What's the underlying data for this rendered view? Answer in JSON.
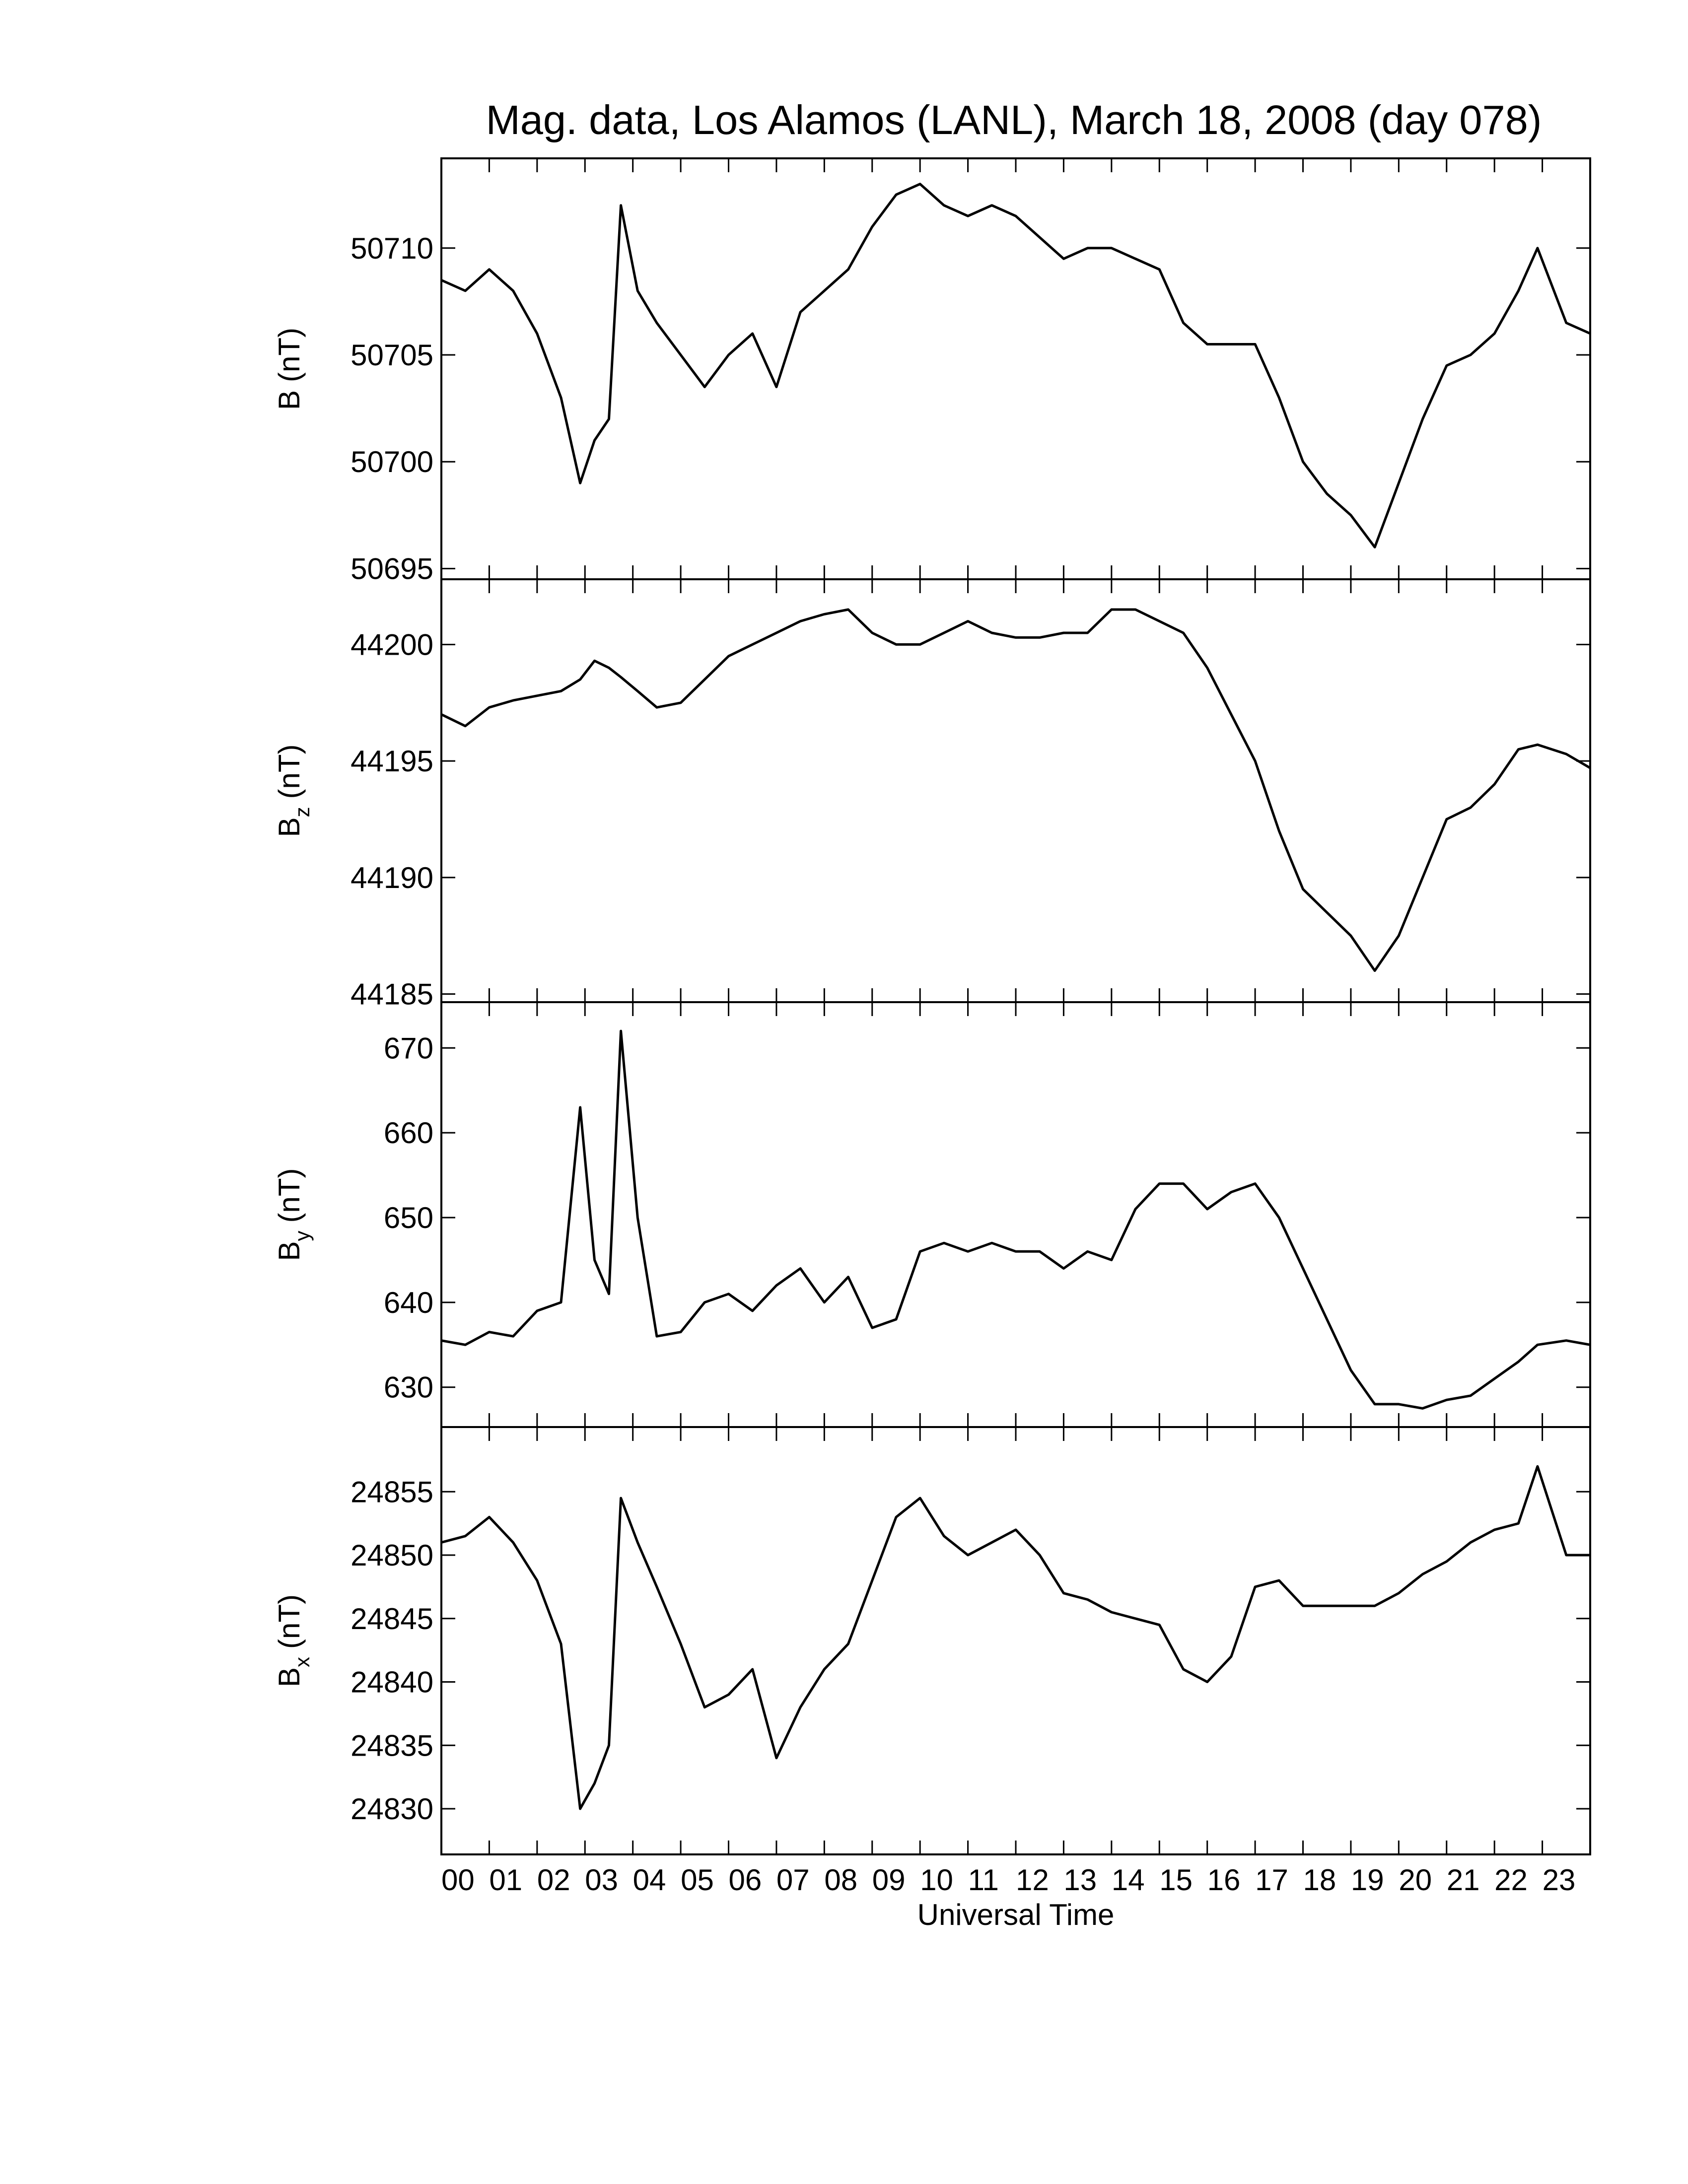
{
  "chart_data": [
    {
      "type": "line",
      "title": "Mag. data, Los Alamos (LANL), March 18, 2008 (day 078)",
      "ylabel": [
        "B",
        "(nT)"
      ],
      "color": "#000000",
      "x": [
        0,
        0.5,
        1,
        1.5,
        2,
        2.5,
        2.9,
        3.2,
        3.5,
        3.75,
        4.1,
        4.5,
        5,
        5.5,
        6,
        6.5,
        7,
        7.5,
        8,
        8.5,
        9,
        9.5,
        10,
        10.5,
        11,
        11.5,
        12,
        12.5,
        13,
        13.5,
        14,
        14.5,
        15,
        15.5,
        16,
        16.5,
        17,
        17.5,
        18,
        18.5,
        19,
        19.5,
        20,
        20.5,
        21,
        21.5,
        22,
        22.5,
        22.9,
        23.5,
        24
      ],
      "values": [
        50708.5,
        50708,
        50709,
        50708,
        50706,
        50703,
        50699,
        50701,
        50702,
        50712,
        50708,
        50706.5,
        50705,
        50703.5,
        50705,
        50706,
        50703.5,
        50707,
        50708,
        50709,
        50711,
        50712.5,
        50713,
        50712,
        50711.5,
        50712,
        50711.5,
        50710.5,
        50709.5,
        50710,
        50710,
        50709.5,
        50709,
        50706.5,
        50705.5,
        50705.5,
        50705.5,
        50703,
        50700,
        50698.5,
        50697.5,
        50696,
        50699,
        50702,
        50704.5,
        50705,
        50706,
        50708,
        50710,
        50706.5,
        50706
      ],
      "xlim": [
        0,
        24
      ],
      "ylim": [
        50694.5,
        50714.2
      ],
      "yticks": [
        50695,
        50700,
        50705,
        50710
      ]
    },
    {
      "type": "line",
      "ylabel": [
        "B",
        "z",
        "(nT)"
      ],
      "color": "#000000",
      "x": [
        0,
        0.5,
        1,
        1.5,
        2,
        2.5,
        2.9,
        3.2,
        3.5,
        3.75,
        4.1,
        4.5,
        5,
        5.5,
        6,
        6.5,
        7,
        7.5,
        8,
        8.5,
        9,
        9.5,
        10,
        10.5,
        11,
        11.5,
        12,
        12.5,
        13,
        13.5,
        14,
        14.5,
        15,
        15.5,
        16,
        16.5,
        17,
        17.5,
        18,
        18.5,
        19,
        19.5,
        20,
        20.5,
        21,
        21.5,
        22,
        22.5,
        22.9,
        23.5,
        24
      ],
      "values": [
        44197,
        44196.5,
        44197.3,
        44197.6,
        44197.8,
        44198,
        44198.5,
        44199.3,
        44199,
        44198.6,
        44198,
        44197.3,
        44197.5,
        44198.5,
        44199.5,
        44200,
        44200.5,
        44201,
        44201.3,
        44201.5,
        44200.5,
        44200,
        44200,
        44200.5,
        44201,
        44200.5,
        44200.3,
        44200.3,
        44200.5,
        44200.5,
        44201.5,
        44201.5,
        44201,
        44200.5,
        44199,
        44197,
        44195,
        44192,
        44189.5,
        44188.5,
        44187.5,
        44186,
        44187.5,
        44190,
        44192.5,
        44193,
        44194,
        44195.5,
        44195.7,
        44195.3,
        44194.7
      ],
      "xlim": [
        0,
        24
      ],
      "ylim": [
        44184.65,
        44202.8
      ],
      "yticks": [
        44185,
        44190,
        44195,
        44200
      ]
    },
    {
      "type": "line",
      "ylabel": [
        "B",
        "y",
        "(nT)"
      ],
      "color": "#000000",
      "x": [
        0,
        0.5,
        1,
        1.5,
        2,
        2.5,
        2.9,
        3.2,
        3.5,
        3.75,
        4.1,
        4.5,
        5,
        5.5,
        6,
        6.5,
        7,
        7.5,
        8,
        8.5,
        9,
        9.5,
        10,
        10.5,
        11,
        11.5,
        12,
        12.5,
        13,
        13.5,
        14,
        14.5,
        15,
        15.5,
        16,
        16.5,
        17,
        17.5,
        18,
        18.5,
        19,
        19.5,
        20,
        20.5,
        21,
        21.5,
        22,
        22.5,
        22.9,
        23.5,
        24
      ],
      "values": [
        635.5,
        635,
        636.5,
        636,
        639,
        640,
        663,
        645,
        641,
        672,
        650,
        636,
        636.5,
        640,
        641,
        639,
        642,
        644,
        640,
        643,
        637,
        638,
        646,
        647,
        646,
        647,
        646,
        646,
        644,
        646,
        645,
        651,
        654,
        654,
        651,
        653,
        654,
        650,
        644,
        638,
        632,
        628,
        628,
        627.5,
        628.5,
        629,
        631,
        633,
        635,
        635.5,
        635
      ],
      "xlim": [
        0,
        24
      ],
      "ylim": [
        625.3,
        675.4
      ],
      "yticks": [
        630,
        640,
        650,
        660,
        670
      ]
    },
    {
      "type": "line",
      "ylabel": [
        "B",
        "x",
        "(nT)"
      ],
      "xlabel": "Universal Time",
      "color": "#000000",
      "x": [
        0,
        0.5,
        1,
        1.5,
        2,
        2.5,
        2.9,
        3.2,
        3.5,
        3.75,
        4.1,
        4.5,
        5,
        5.5,
        6,
        6.5,
        7,
        7.5,
        8,
        8.5,
        9,
        9.5,
        10,
        10.5,
        11,
        11.5,
        12,
        12.5,
        13,
        13.5,
        14,
        14.5,
        15,
        15.5,
        16,
        16.5,
        17,
        17.5,
        18,
        18.5,
        19,
        19.5,
        20,
        20.5,
        21,
        21.5,
        22,
        22.5,
        22.9,
        23.5,
        24
      ],
      "values": [
        24851,
        24851.5,
        24853,
        24851,
        24848,
        24843,
        24830,
        24832,
        24835,
        24854.5,
        24851,
        24847.5,
        24843,
        24838,
        24839,
        24841,
        24834,
        24838,
        24841,
        24843,
        24848,
        24853,
        24854.5,
        24851.5,
        24850,
        24851,
        24852,
        24850,
        24847,
        24846.5,
        24845.5,
        24845,
        24844.5,
        24841,
        24840,
        24842,
        24847.5,
        24848,
        24846,
        24846,
        24846,
        24846,
        24847,
        24848.5,
        24849.5,
        24851,
        24852,
        24852.5,
        24857,
        24850,
        24850
      ],
      "xlim": [
        0,
        24
      ],
      "ylim": [
        24826.4,
        24860.1
      ],
      "yticks": [
        24830,
        24835,
        24840,
        24845,
        24850,
        24855
      ],
      "xticks": [
        {
          "value": 0,
          "label": "00"
        },
        {
          "value": 1,
          "label": "01"
        },
        {
          "value": 2,
          "label": "02"
        },
        {
          "value": 3,
          "label": "03"
        },
        {
          "value": 4,
          "label": "04"
        },
        {
          "value": 5,
          "label": "05"
        },
        {
          "value": 6,
          "label": "06"
        },
        {
          "value": 7,
          "label": "07"
        },
        {
          "value": 8,
          "label": "08"
        },
        {
          "value": 9,
          "label": "09"
        },
        {
          "value": 10,
          "label": "10"
        },
        {
          "value": 11,
          "label": "11"
        },
        {
          "value": 12,
          "label": "12"
        },
        {
          "value": 13,
          "label": "13"
        },
        {
          "value": 14,
          "label": "14"
        },
        {
          "value": 15,
          "label": "15"
        },
        {
          "value": 16,
          "label": "16"
        },
        {
          "value": 17,
          "label": "17"
        },
        {
          "value": 18,
          "label": "18"
        },
        {
          "value": 19,
          "label": "19"
        },
        {
          "value": 20,
          "label": "20"
        },
        {
          "value": 21,
          "label": "21"
        },
        {
          "value": 22,
          "label": "22"
        },
        {
          "value": 23,
          "label": "23"
        }
      ]
    }
  ]
}
